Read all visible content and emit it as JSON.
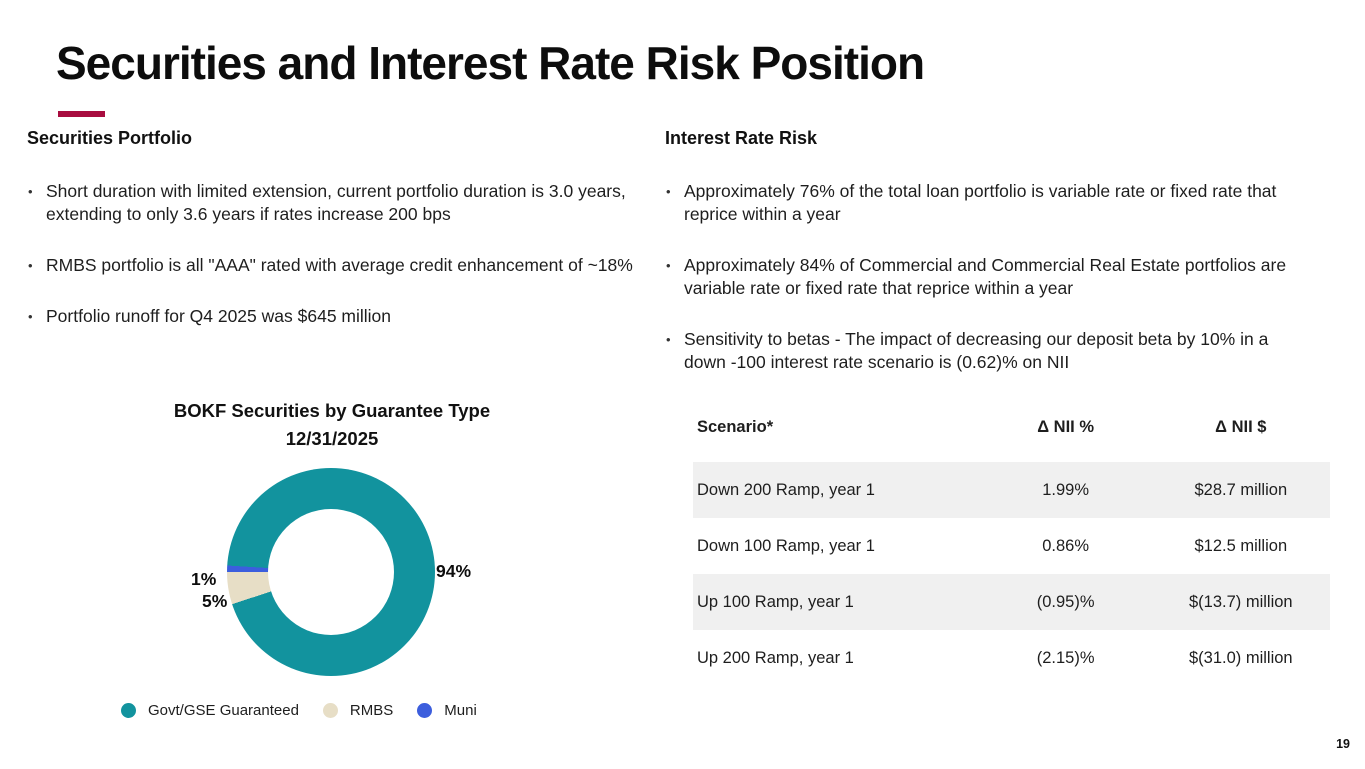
{
  "slide": {
    "title": "Securities and Interest Rate Risk Position",
    "page_number": "19",
    "accent_color": "#A80D3F"
  },
  "securities_portfolio": {
    "heading": "Securities Portfolio",
    "bullets": [
      "Short duration with limited extension, current portfolio duration is 3.0 years, extending to only 3.6 years if rates increase 200 bps",
      "RMBS portfolio is all \"AAA\" rated with average credit enhancement of  ~18%",
      "Portfolio runoff for Q4 2025 was $645 million"
    ]
  },
  "interest_rate_risk": {
    "heading": "Interest Rate Risk",
    "bullets": [
      "Approximately 76% of the total loan portfolio is variable rate or fixed rate that reprice within a year",
      "Approximately 84% of Commercial and Commercial Real Estate portfolios are variable rate or fixed rate that reprice within a year",
      "Sensitivity to betas - The impact of decreasing our deposit beta by 10% in a down -100 interest rate scenario is (0.62)% on NII"
    ]
  },
  "chart_data": {
    "type": "pie",
    "donut": true,
    "title": "BOKF Securities by Guarantee Type",
    "subtitle": "12/31/2025",
    "rotation_deg": 273.6,
    "legend_position": "bottom",
    "segments": [
      {
        "label": "Govt/GSE Guaranteed",
        "value": 94,
        "display": "94%",
        "color": "#12939E"
      },
      {
        "label": "RMBS",
        "value": 5,
        "display": "5%",
        "color": "#E7DEC6"
      },
      {
        "label": "Muni",
        "value": 1,
        "display": "1%",
        "color": "#3C5EDD"
      }
    ]
  },
  "nii_table": {
    "striped_color": "#F0F0F0",
    "headers": [
      "Scenario*",
      "Δ NII %",
      "Δ NII $"
    ],
    "rows": [
      [
        "Down 200 Ramp, year 1",
        "1.99%",
        "$28.7 million"
      ],
      [
        "Down 100 Ramp, year 1",
        "0.86%",
        "$12.5 million"
      ],
      [
        "Up 100 Ramp, year 1",
        "(0.95)%",
        "$(13.7) million"
      ],
      [
        "Up 200 Ramp, year 1",
        "(2.15)%",
        "$(31.0) million"
      ]
    ]
  }
}
